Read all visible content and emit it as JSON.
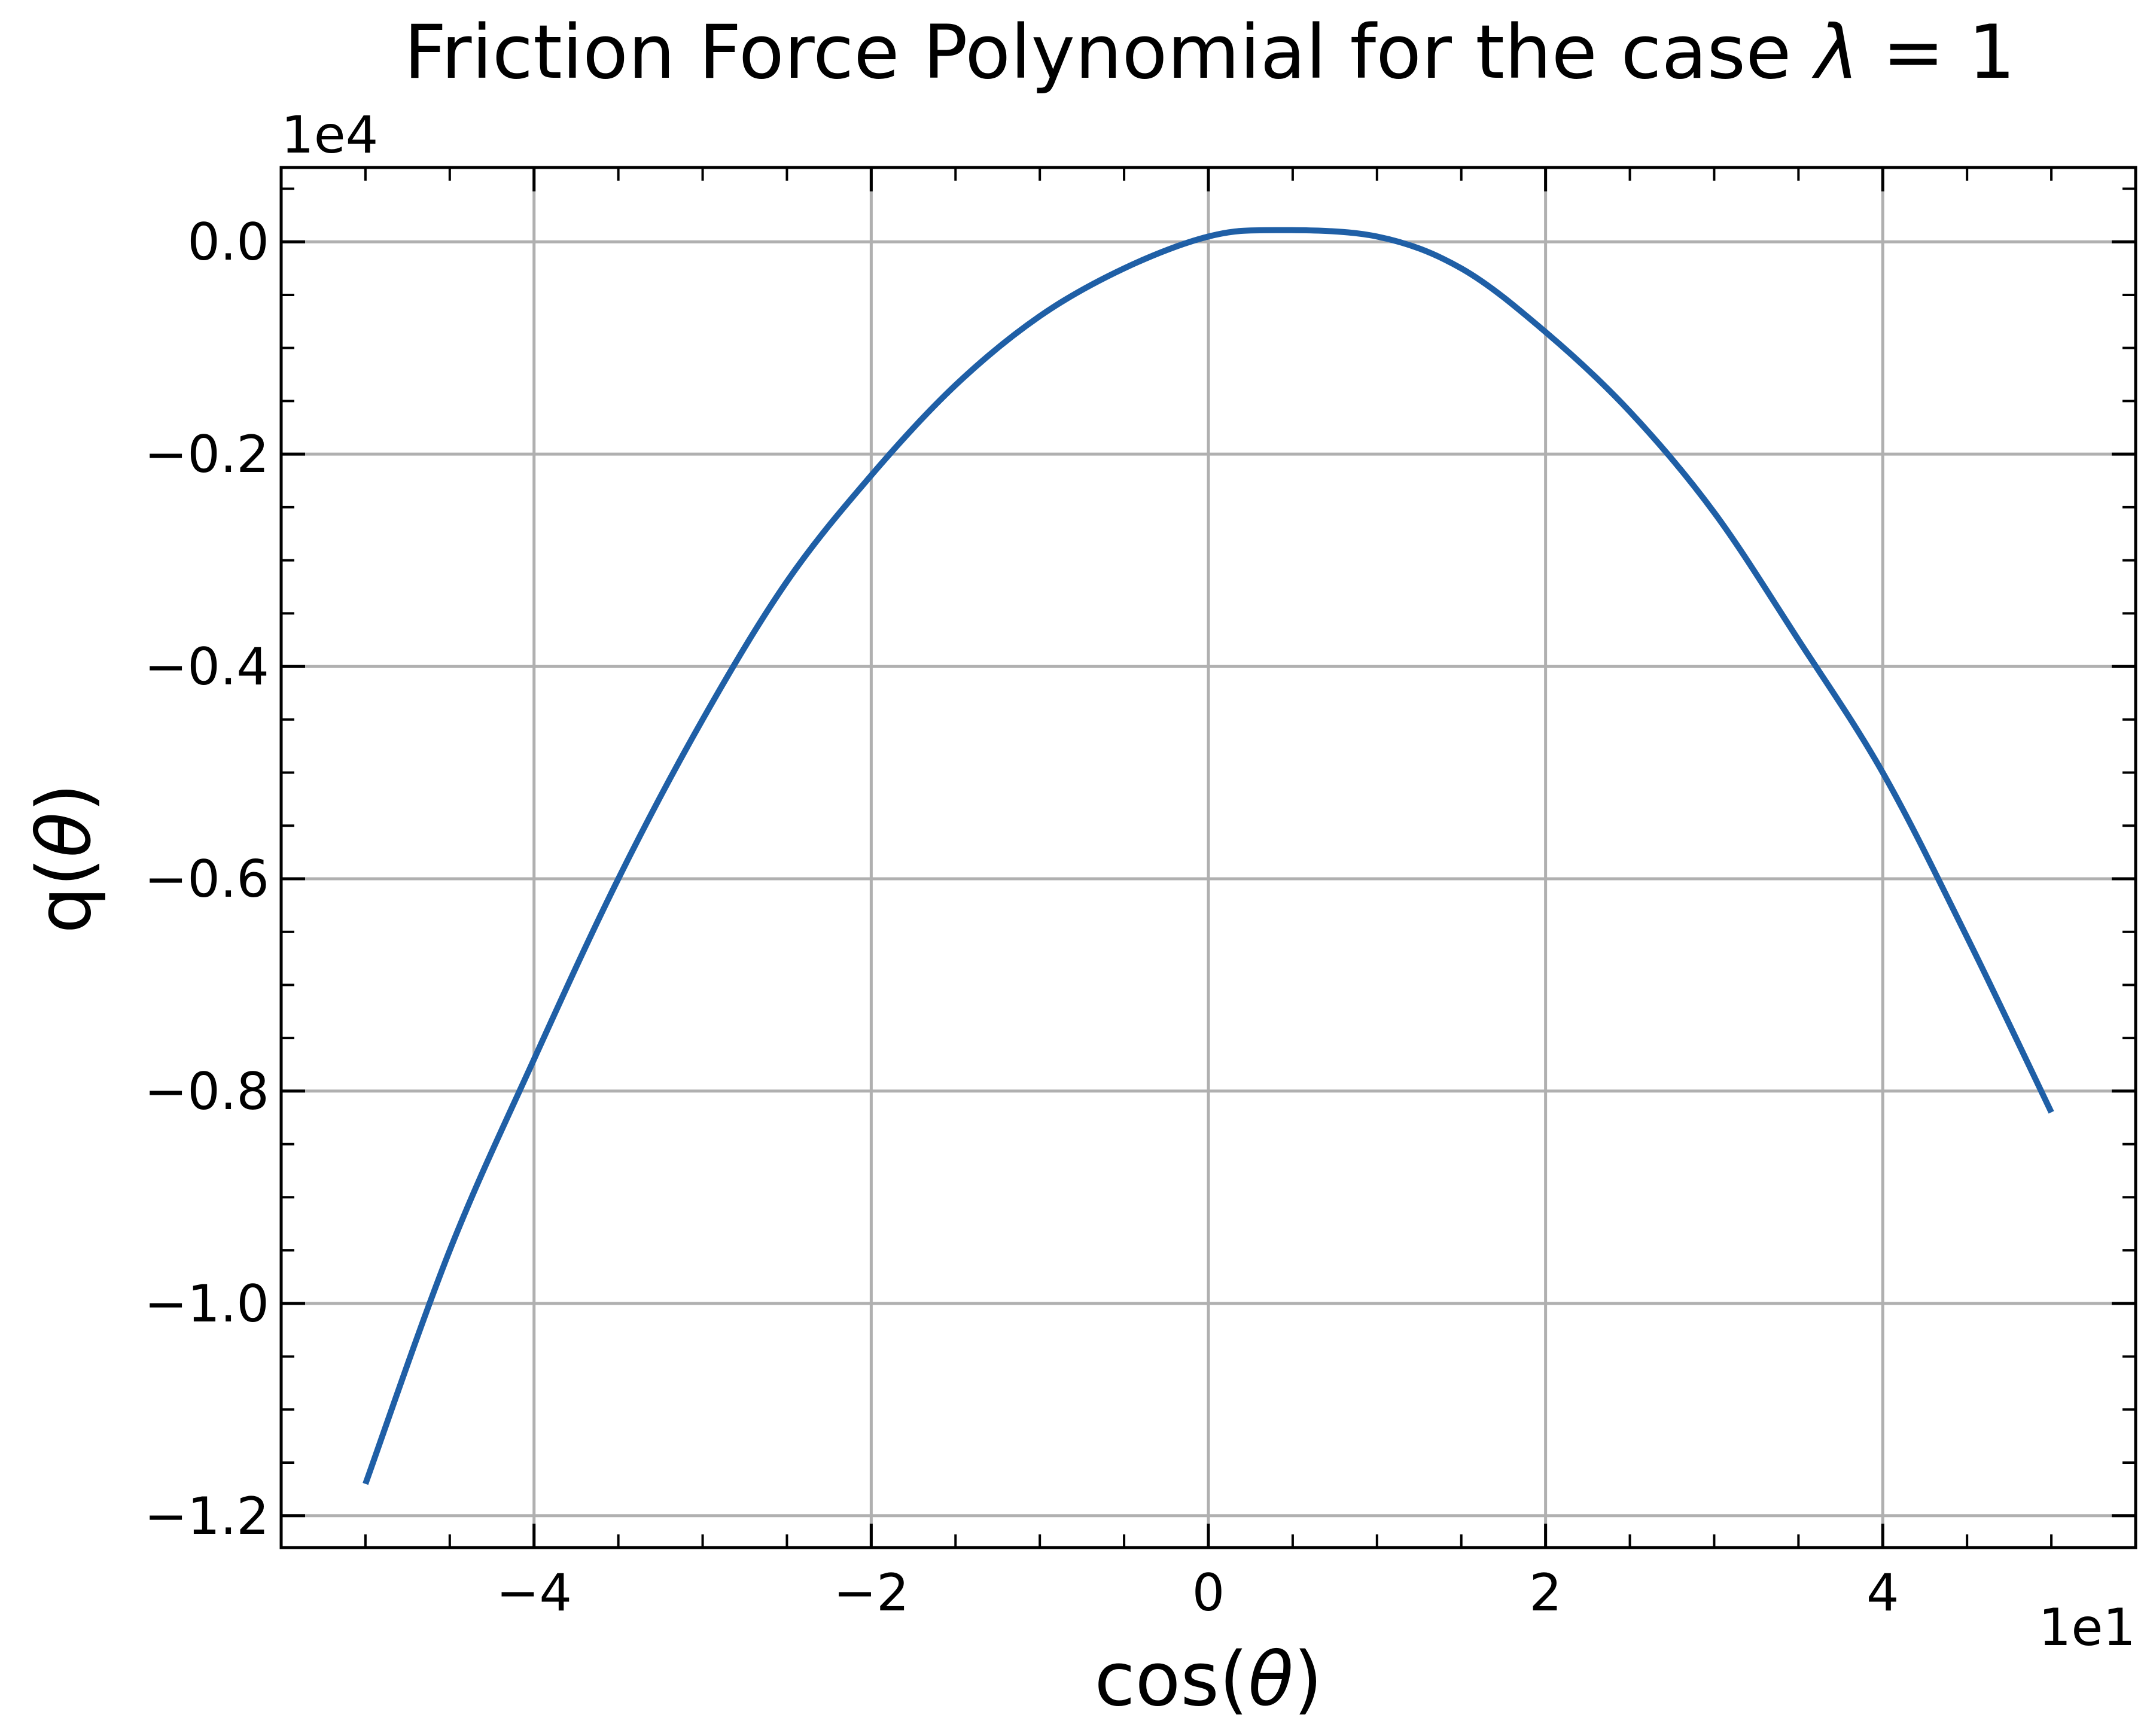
{
  "chart_data": {
    "type": "line",
    "title": "Friction Force Polynomial for the case λ = 1",
    "title_parts": {
      "main": "Friction Force Polynomial for the case ",
      "symbol": "λ",
      "suffix": " = 1"
    },
    "xlabel": "cos(θ)",
    "xlabel_parts": {
      "prefix": "cos(",
      "symbol": "θ",
      "suffix": ")"
    },
    "ylabel": "q(θ)",
    "ylabel_parts": {
      "prefix": "q(",
      "symbol": "θ",
      "suffix": ")"
    },
    "x_offset_text": "1e1",
    "y_offset_text": "1e4",
    "x_scale_factor": 10,
    "y_scale_factor": 10000,
    "xlim": [
      -55,
      55
    ],
    "ylim": [
      -12300,
      700
    ],
    "x_ticks": [
      -40,
      -20,
      0,
      20,
      40
    ],
    "x_tick_labels": [
      "−4",
      "−2",
      "0",
      "2",
      "4"
    ],
    "y_ticks": [
      0,
      -2000,
      -4000,
      -6000,
      -8000,
      -10000,
      -12000
    ],
    "y_tick_labels": [
      "0.0",
      "−0.2",
      "−0.4",
      "−0.6",
      "−0.8",
      "−1.0",
      "−1.2"
    ],
    "grid": true,
    "color": "#1f5fa6",
    "series": [
      {
        "points": [
          [
            -50,
            -11700
          ],
          [
            -45,
            -9500
          ],
          [
            -40,
            -7700
          ],
          [
            -35,
            -6000
          ],
          [
            -30,
            -4500
          ],
          [
            -25,
            -3200
          ],
          [
            -20,
            -2200
          ],
          [
            -15,
            -1350
          ],
          [
            -10,
            -700
          ],
          [
            -5,
            -250
          ],
          [
            0,
            50
          ],
          [
            4,
            110
          ],
          [
            10,
            50
          ],
          [
            15,
            -250
          ],
          [
            20,
            -850
          ],
          [
            25,
            -1600
          ],
          [
            30,
            -2550
          ],
          [
            35,
            -3750
          ],
          [
            40,
            -5000
          ],
          [
            45,
            -6550
          ],
          [
            50,
            -8200
          ]
        ]
      }
    ]
  }
}
